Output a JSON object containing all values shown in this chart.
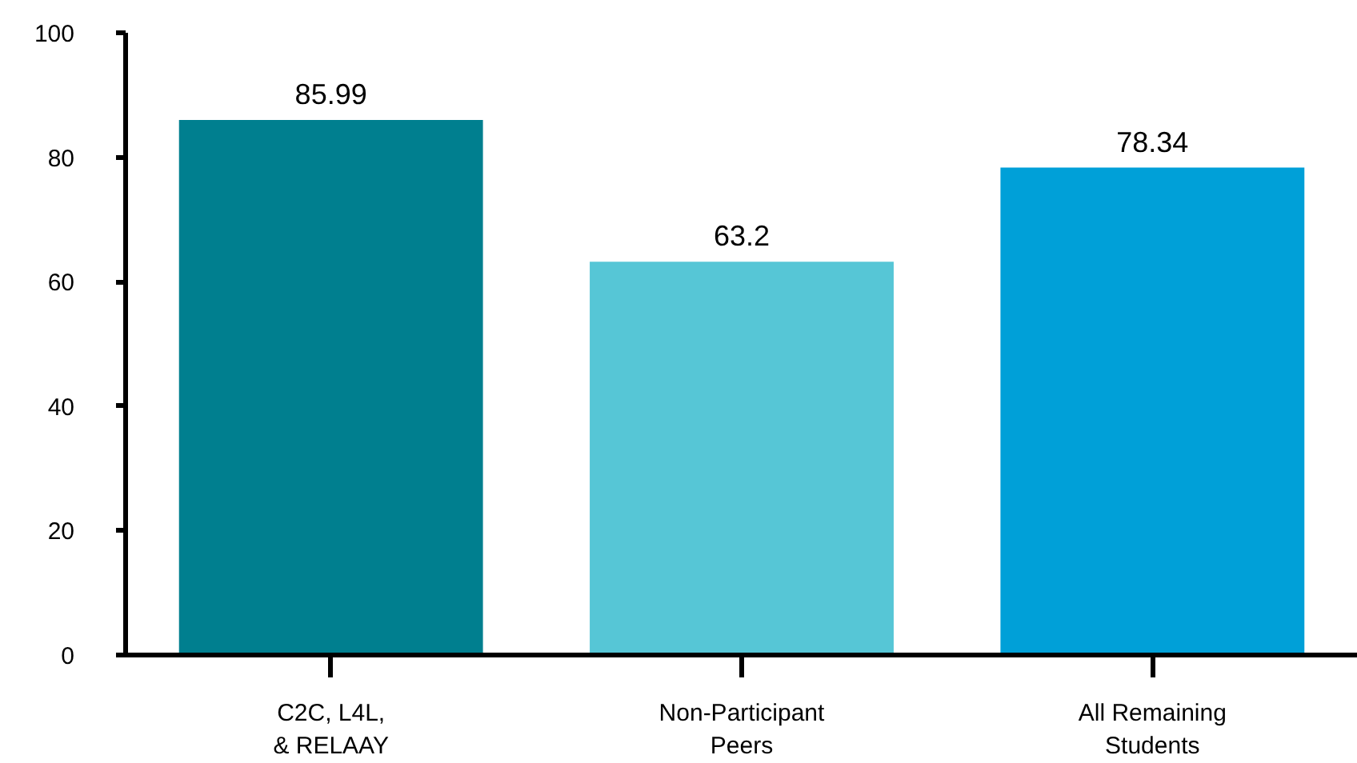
{
  "chart_data": {
    "type": "bar",
    "categories": [
      "C2C, L4L,\n& RELAAY",
      "Non-Participant\nPeers",
      "All Remaining\nStudents"
    ],
    "values": [
      85.99,
      63.2,
      78.34
    ],
    "colors": [
      "#007f8f",
      "#56c6d6",
      "#00a0d8"
    ],
    "ylim": [
      0,
      100
    ],
    "yticks": [
      0,
      20,
      40,
      60,
      80,
      100
    ],
    "data_labels": true,
    "grid": false
  }
}
